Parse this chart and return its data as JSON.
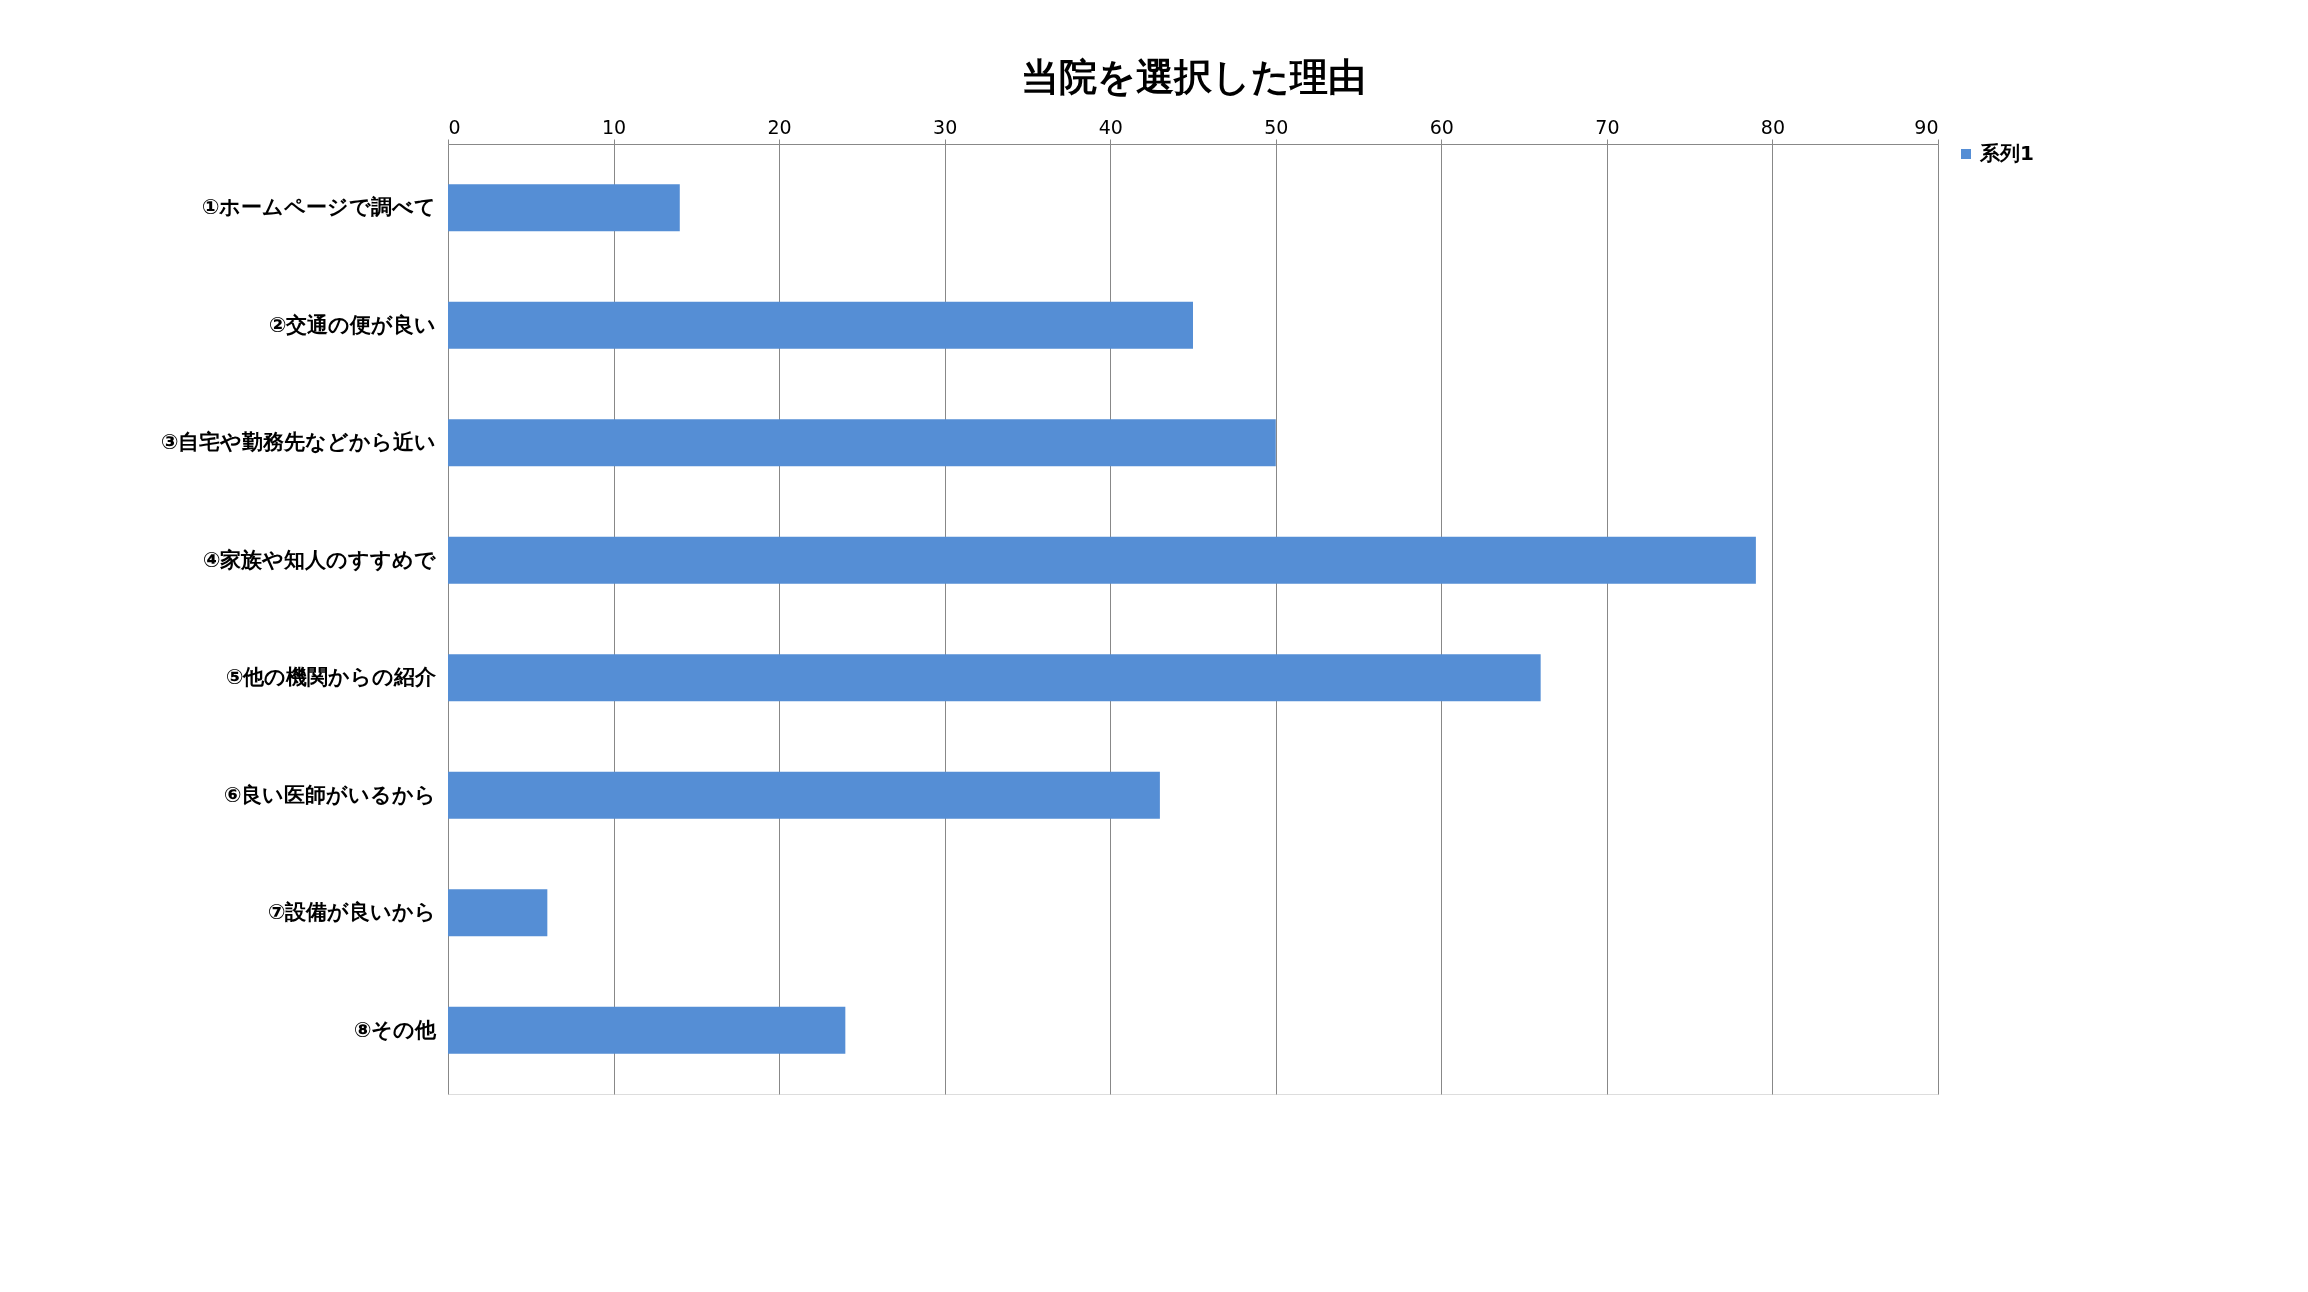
{
  "chart_data": {
    "type": "bar",
    "orientation": "horizontal",
    "title": "当院を選択した理由",
    "categories": [
      "①ホームページで調べて",
      "②交通の便が良い",
      "③自宅や勤務先などから近い",
      "④家族や知人のすすめで",
      "⑤他の機関からの紹介",
      "⑥良い医師がいるから",
      "⑦設備が良いから",
      "⑧その他"
    ],
    "series": [
      {
        "name": "系列1",
        "color": "#558ed5",
        "values": [
          14,
          45,
          50,
          79,
          66,
          43,
          6,
          24
        ]
      }
    ],
    "xlim": [
      0,
      90
    ],
    "xticks": [
      0,
      10,
      20,
      30,
      40,
      50,
      60,
      70,
      80,
      90
    ],
    "grid": "x",
    "legend": "right"
  }
}
